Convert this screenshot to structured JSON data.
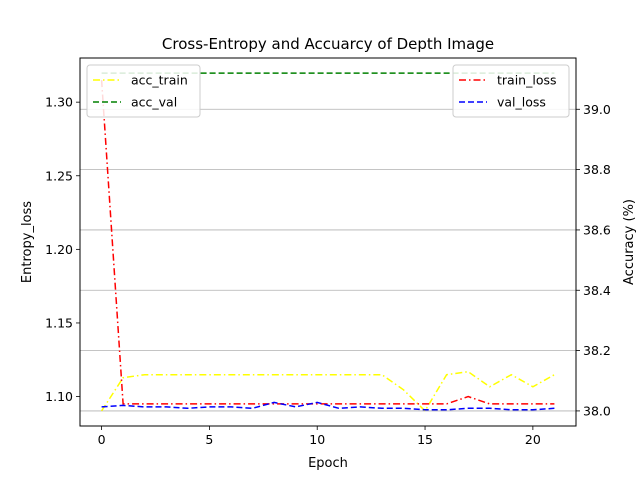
{
  "chart_data": {
    "type": "line",
    "title": "Cross-Entropy and Accuarcy of Depth Image",
    "xlabel": "Epoch",
    "ylabel_left": "Entropy_loss",
    "ylabel_right": "Accuracy (%)",
    "xlim": [
      -1,
      22
    ],
    "ylim_left": [
      1.08,
      1.33
    ],
    "ylim_right": [
      37.95,
      39.17
    ],
    "x_ticks": [
      0,
      5,
      10,
      15,
      20
    ],
    "y_ticks_left": [
      1.1,
      1.15,
      1.2,
      1.25,
      1.3
    ],
    "y_ticks_left_labels": [
      "1.10",
      "1.15",
      "1.20",
      "1.25",
      "1.30"
    ],
    "y_ticks_right": [
      38.0,
      38.2,
      38.4,
      38.6,
      38.8,
      39.0
    ],
    "y_ticks_right_labels": [
      "38.0",
      "38.2",
      "38.4",
      "38.6",
      "38.8",
      "39.0"
    ],
    "grid": "horizontal lines at right-axis ticks",
    "legend_left_placement": "upper-left",
    "legend_right_placement": "upper-right",
    "x": [
      0,
      1,
      2,
      3,
      4,
      5,
      6,
      7,
      8,
      9,
      10,
      11,
      12,
      13,
      14,
      15,
      16,
      17,
      18,
      19,
      20,
      21
    ],
    "series": [
      {
        "name": "acc_train",
        "axis": "right",
        "color": "#ffff00",
        "dash": "dashdot",
        "values": [
          38.0,
          38.11,
          38.12,
          38.12,
          38.12,
          38.12,
          38.12,
          38.12,
          38.12,
          38.12,
          38.12,
          38.12,
          38.12,
          38.12,
          38.07,
          38.0,
          38.12,
          38.13,
          38.08,
          38.12,
          38.08,
          38.12
        ]
      },
      {
        "name": "acc_val",
        "axis": "right",
        "color": "#008000",
        "dash": "dashed",
        "values": [
          39.12,
          39.12,
          39.12,
          39.12,
          39.12,
          39.12,
          39.12,
          39.12,
          39.12,
          39.12,
          39.12,
          39.12,
          39.12,
          39.12,
          39.12,
          39.12,
          39.12,
          39.12,
          39.12,
          39.12,
          39.12,
          39.12
        ]
      },
      {
        "name": "train_loss",
        "axis": "left",
        "color": "#ff0000",
        "dash": "dashdot",
        "values": [
          1.315,
          1.095,
          1.095,
          1.095,
          1.095,
          1.095,
          1.095,
          1.095,
          1.095,
          1.095,
          1.095,
          1.095,
          1.095,
          1.095,
          1.095,
          1.095,
          1.095,
          1.1,
          1.095,
          1.095,
          1.095,
          1.095
        ]
      },
      {
        "name": "val_loss",
        "axis": "left",
        "color": "#0000ff",
        "dash": "dashed",
        "values": [
          1.093,
          1.094,
          1.093,
          1.093,
          1.092,
          1.093,
          1.093,
          1.092,
          1.096,
          1.093,
          1.096,
          1.092,
          1.093,
          1.092,
          1.092,
          1.091,
          1.091,
          1.092,
          1.092,
          1.091,
          1.091,
          1.092
        ]
      }
    ]
  }
}
